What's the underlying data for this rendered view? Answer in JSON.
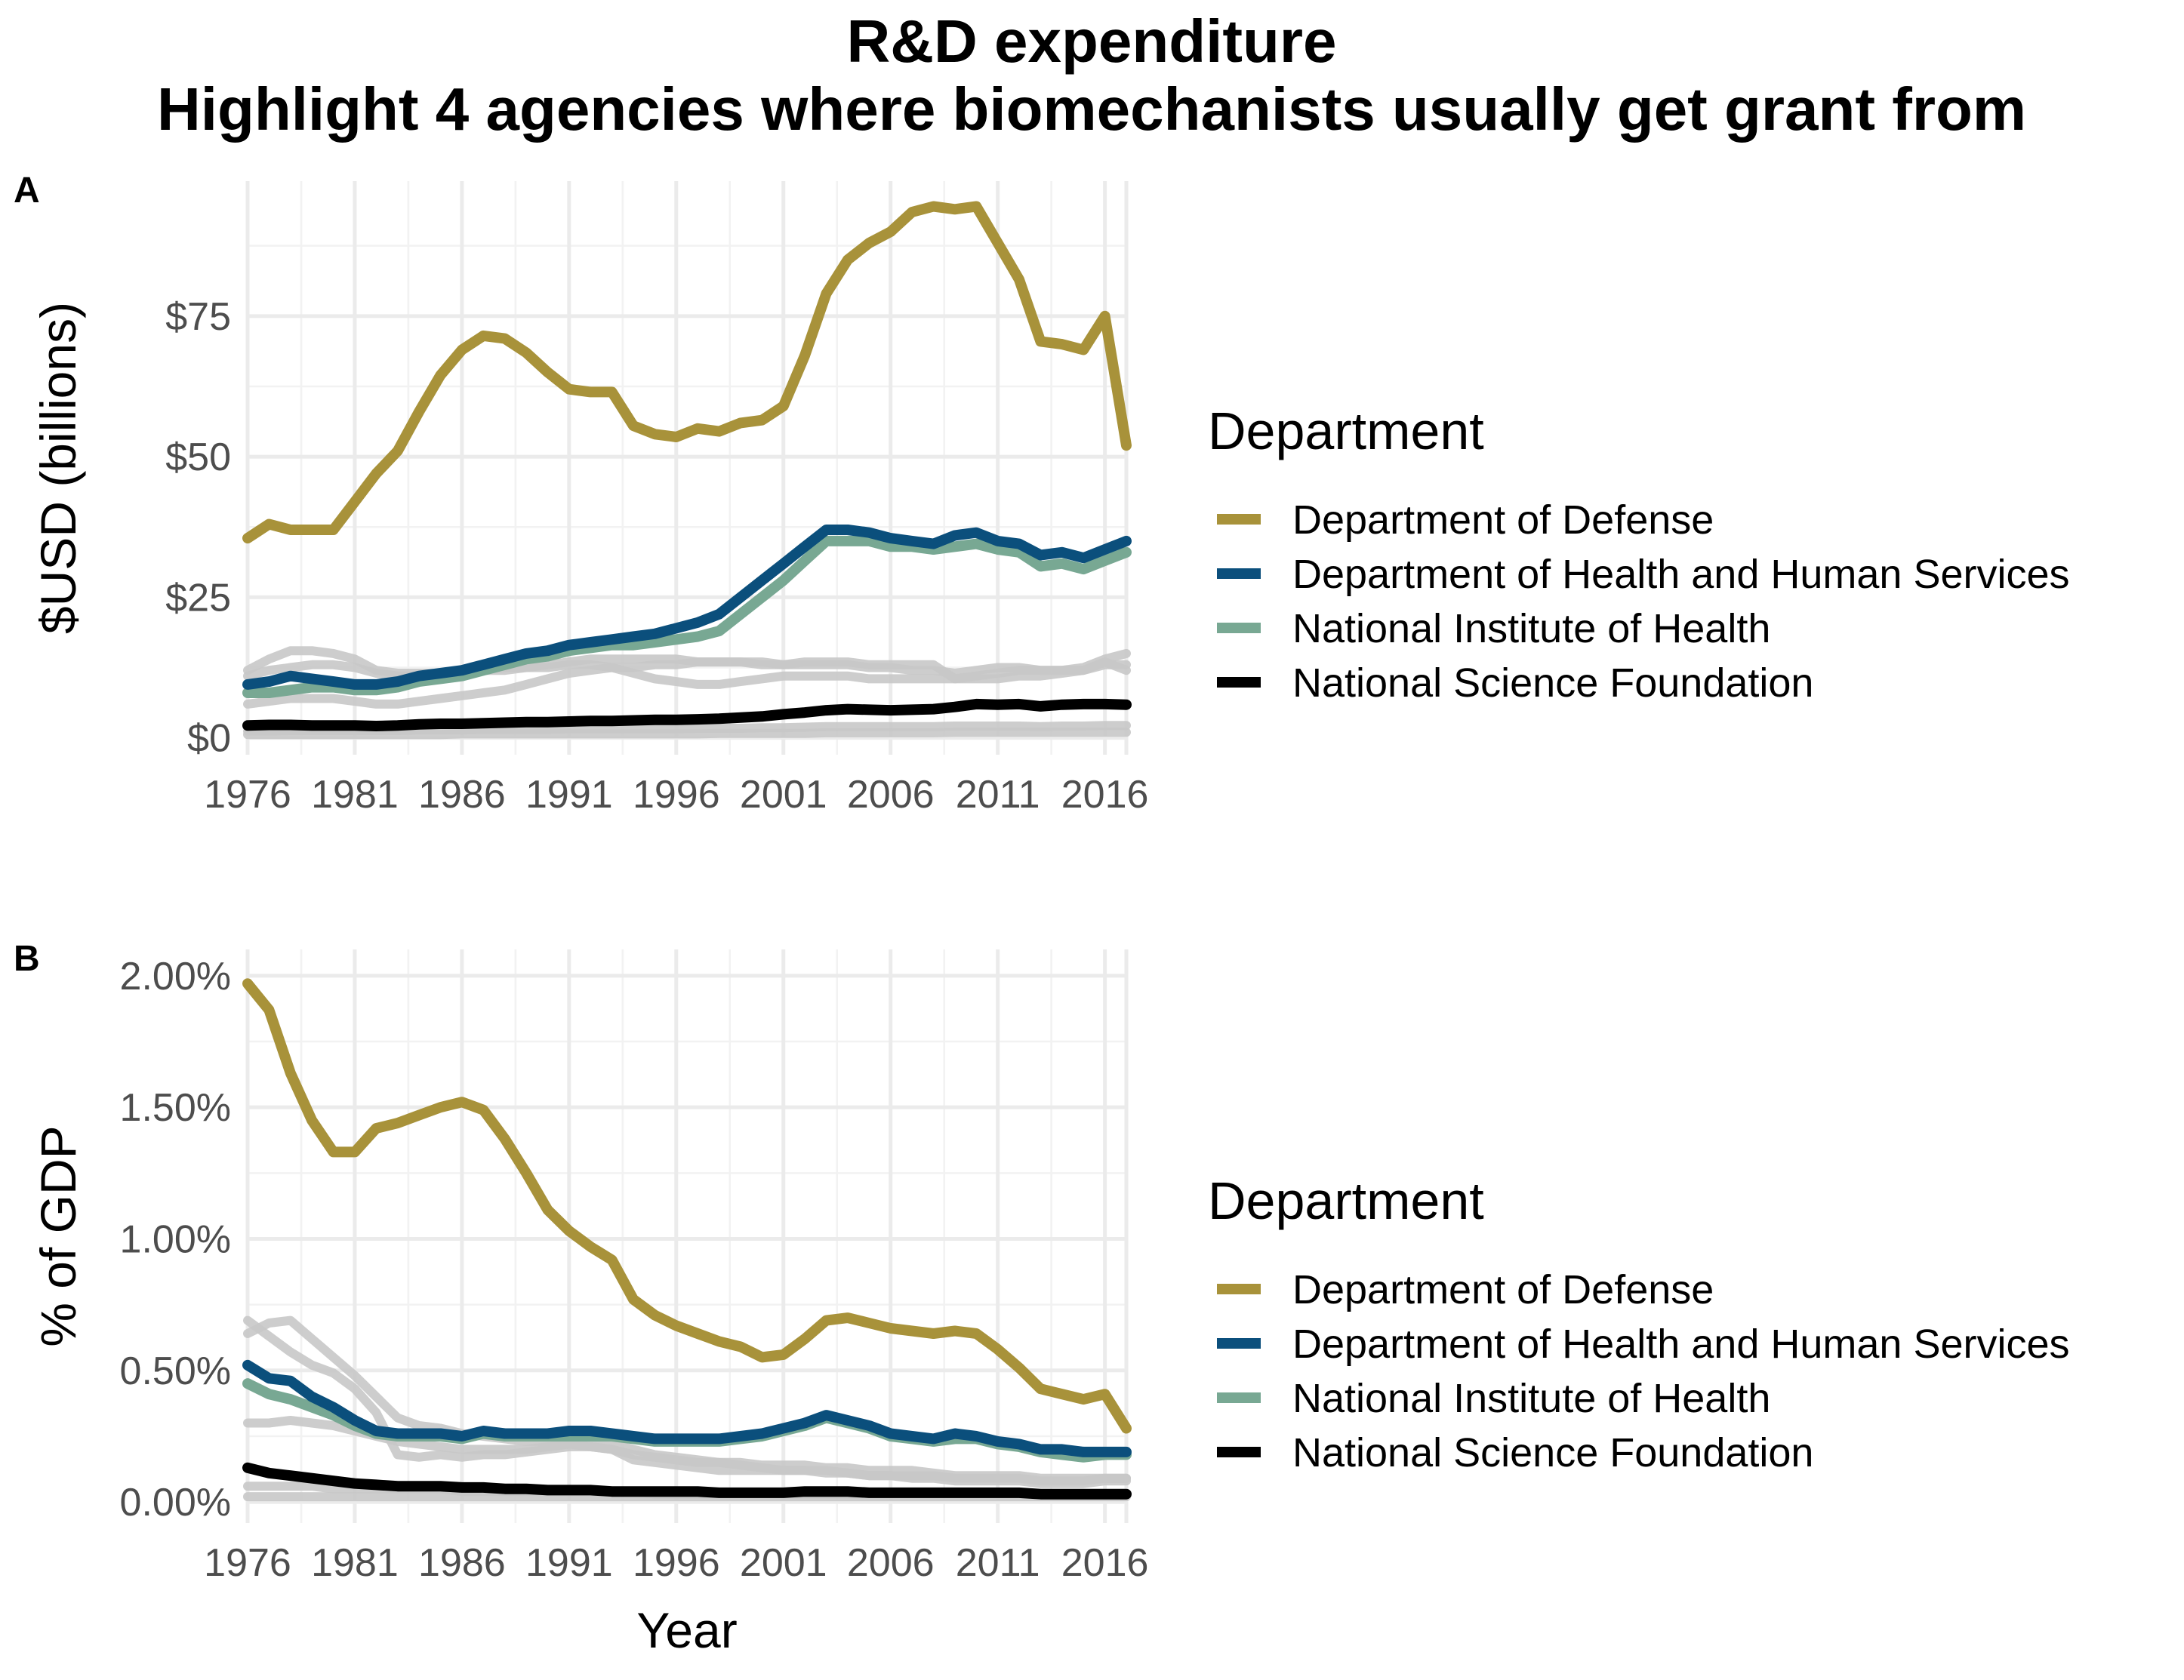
{
  "title_line1": "R&D expenditure",
  "title_line2": "Highlight 4 agencies where biomechanists usually get grant from",
  "colors": {
    "Department of Defense": "#a8923a",
    "Department of Health and Human Services": "#0b4f7c",
    "National Institute of Health": "#78a893",
    "National Science Foundation": "#000000",
    "background_agencies": "#c8c8c8"
  },
  "chart_data": [
    {
      "type": "line",
      "panel_tag": "A",
      "title": "",
      "xlabel": "",
      "ylabel": "$USD (billions)",
      "x_ticks": [
        "1976",
        "1981",
        "1986",
        "1991",
        "1996",
        "2001",
        "2006",
        "2011",
        "2016"
      ],
      "y_ticks": [
        "$0",
        "$25",
        "$50",
        "$75"
      ],
      "y_tick_values": [
        0,
        25,
        50,
        75
      ],
      "xlim": [
        1976,
        2017
      ],
      "ylim": [
        -3,
        99
      ],
      "grid": true,
      "legend": {
        "title": "Department",
        "position": "right",
        "entries": [
          "Department of Defense",
          "Department of Health and Human Services",
          "National Institute of Health",
          "National Science Foundation"
        ]
      },
      "x": [
        1976,
        1977,
        1978,
        1979,
        1980,
        1981,
        1982,
        1983,
        1984,
        1985,
        1986,
        1987,
        1988,
        1989,
        1990,
        1991,
        1992,
        1993,
        1994,
        1995,
        1996,
        1997,
        1998,
        1999,
        2000,
        2001,
        2002,
        2003,
        2004,
        2005,
        2006,
        2007,
        2008,
        2009,
        2010,
        2011,
        2012,
        2013,
        2014,
        2015,
        2016,
        2017
      ],
      "series": [
        {
          "name": "Department of Defense",
          "values": [
            35.5,
            38,
            37,
            37,
            37,
            42,
            47,
            51,
            58,
            64.5,
            69,
            71.5,
            71,
            68.5,
            65,
            62,
            61.5,
            61.5,
            55.5,
            54,
            53.5,
            55,
            54.5,
            56,
            56.5,
            59,
            68,
            79,
            85,
            88,
            90,
            93.5,
            94.5,
            94,
            94.5,
            88,
            81.5,
            70.5,
            70,
            69,
            75,
            52
          ]
        },
        {
          "name": "Department of Health and Human Services",
          "values": [
            9.5,
            10,
            11,
            10.5,
            10,
            9.5,
            9.5,
            10,
            11,
            11.5,
            12,
            13,
            14,
            15,
            15.5,
            16.5,
            17,
            17.5,
            18,
            18.5,
            19.5,
            20.5,
            22,
            25,
            28,
            31,
            34,
            37,
            37,
            36.5,
            35.5,
            35,
            34.5,
            36,
            36.5,
            35,
            34.5,
            32.5,
            33,
            32,
            33.5,
            35
          ]
        },
        {
          "name": "National Institute of Health",
          "values": [
            8,
            8,
            8.5,
            9,
            9,
            8.5,
            8.5,
            9,
            10,
            10.5,
            11,
            12,
            13,
            14,
            14.5,
            15.5,
            16,
            16.5,
            16.5,
            17,
            17.5,
            18,
            19,
            22,
            25,
            28,
            31.5,
            35,
            35,
            35,
            34,
            34,
            33.5,
            34,
            34.5,
            33.5,
            33,
            30.5,
            31,
            30,
            31.5,
            33
          ]
        },
        {
          "name": "National Science Foundation",
          "values": [
            2.2,
            2.3,
            2.3,
            2.2,
            2.2,
            2.2,
            2.1,
            2.2,
            2.4,
            2.5,
            2.5,
            2.6,
            2.7,
            2.8,
            2.8,
            2.9,
            3,
            3,
            3.1,
            3.2,
            3.2,
            3.3,
            3.4,
            3.6,
            3.8,
            4.2,
            4.5,
            4.9,
            5.1,
            5,
            4.9,
            5,
            5.1,
            5.5,
            6,
            5.9,
            6,
            5.6,
            5.9,
            6,
            6,
            5.9
          ]
        },
        {
          "name": "",
          "values": [
            12,
            14,
            15.5,
            15.5,
            15,
            14,
            12,
            11.5,
            11.5,
            11.5,
            11.5,
            12,
            12,
            12.5,
            13,
            13.5,
            14,
            14,
            14,
            14,
            14,
            13.5,
            13.5,
            13.5,
            13.5,
            13,
            13,
            13,
            13,
            12.5,
            12.5,
            12,
            12,
            11.5,
            12,
            12.5,
            12.5,
            12,
            12,
            12.5,
            14,
            15
          ]
        },
        {
          "name": "",
          "values": [
            11,
            12,
            12.5,
            13,
            13,
            12.5,
            11.5,
            11,
            11,
            11.5,
            12,
            12,
            12.5,
            12.5,
            12.5,
            13,
            13,
            12.5,
            11.5,
            10.5,
            10,
            9.5,
            9.5,
            10,
            10.5,
            11,
            11,
            11,
            11,
            10.5,
            10.5,
            10.5,
            10.5,
            10.5,
            10.5,
            10.5,
            11,
            11,
            11.5,
            12,
            13,
            13
          ]
        },
        {
          "name": "",
          "values": [
            6,
            6.5,
            7,
            7,
            7,
            6.5,
            6,
            6,
            6.5,
            7,
            7.5,
            8,
            8.5,
            9.5,
            10.5,
            11.5,
            12,
            12.5,
            12.5,
            13,
            13,
            13.5,
            13.5,
            13.5,
            13,
            13,
            13.5,
            13.5,
            13.5,
            13,
            13,
            13,
            13,
            10.5,
            11,
            11.5,
            12,
            12,
            12,
            12,
            13.5,
            12
          ]
        },
        {
          "name": "",
          "values": [
            1.2,
            1.2,
            1.3,
            1.3,
            1.3,
            1.3,
            1.3,
            1.3,
            1.4,
            1.4,
            1.4,
            1.5,
            1.5,
            1.5,
            1.5,
            1.6,
            1.6,
            1.6,
            1.6,
            1.6,
            1.6,
            1.7,
            1.7,
            1.7,
            1.8,
            1.8,
            1.9,
            2,
            2,
            2,
            2,
            2,
            2,
            2.1,
            2.1,
            2.1,
            2.1,
            2,
            2.1,
            2.1,
            2.2,
            2.2
          ]
        },
        {
          "name": "",
          "values": [
            0.6,
            0.6,
            0.6,
            0.6,
            0.6,
            0.6,
            0.6,
            0.6,
            0.6,
            0.6,
            0.7,
            0.7,
            0.7,
            0.7,
            0.7,
            0.7,
            0.7,
            0.7,
            0.7,
            0.7,
            0.7,
            0.7,
            0.8,
            0.8,
            0.8,
            0.8,
            0.8,
            0.9,
            0.9,
            0.9,
            0.9,
            0.9,
            0.9,
            1,
            1,
            1,
            1,
            1,
            1,
            1,
            1,
            1
          ]
        }
      ]
    },
    {
      "type": "line",
      "panel_tag": "B",
      "title": "",
      "xlabel": "Year",
      "ylabel": "% of GDP",
      "x_ticks": [
        "1976",
        "1981",
        "1986",
        "1991",
        "1996",
        "2001",
        "2006",
        "2011",
        "2016"
      ],
      "y_ticks": [
        "0.00%",
        "0.50%",
        "1.00%",
        "1.50%",
        "2.00%"
      ],
      "y_tick_values": [
        0,
        0.5,
        1,
        1.5,
        2
      ],
      "xlim": [
        1976,
        2017
      ],
      "ylim": [
        -0.08,
        2.1
      ],
      "grid": true,
      "legend": {
        "title": "Department",
        "position": "right",
        "entries": [
          "Department of Defense",
          "Department of Health and Human Services",
          "National Institute of Health",
          "National Science Foundation"
        ]
      },
      "x": [
        1976,
        1977,
        1978,
        1979,
        1980,
        1981,
        1982,
        1983,
        1984,
        1985,
        1986,
        1987,
        1988,
        1989,
        1990,
        1991,
        1992,
        1993,
        1994,
        1995,
        1996,
        1997,
        1998,
        1999,
        2000,
        2001,
        2002,
        2003,
        2004,
        2005,
        2006,
        2007,
        2008,
        2009,
        2010,
        2011,
        2012,
        2013,
        2014,
        2015,
        2016,
        2017
      ],
      "series": [
        {
          "name": "Department of Defense",
          "values": [
            1.97,
            1.87,
            1.63,
            1.45,
            1.33,
            1.33,
            1.42,
            1.44,
            1.47,
            1.5,
            1.52,
            1.49,
            1.38,
            1.25,
            1.11,
            1.03,
            0.97,
            0.92,
            0.77,
            0.71,
            0.67,
            0.64,
            0.61,
            0.59,
            0.55,
            0.56,
            0.62,
            0.69,
            0.7,
            0.68,
            0.66,
            0.65,
            0.64,
            0.65,
            0.64,
            0.58,
            0.51,
            0.43,
            0.41,
            0.39,
            0.41,
            0.28
          ]
        },
        {
          "name": "Department of Health and Human Services",
          "values": [
            0.52,
            0.47,
            0.46,
            0.4,
            0.36,
            0.31,
            0.27,
            0.26,
            0.26,
            0.26,
            0.25,
            0.27,
            0.26,
            0.26,
            0.26,
            0.27,
            0.27,
            0.26,
            0.25,
            0.24,
            0.24,
            0.24,
            0.24,
            0.25,
            0.26,
            0.28,
            0.3,
            0.33,
            0.31,
            0.29,
            0.26,
            0.25,
            0.24,
            0.26,
            0.25,
            0.23,
            0.22,
            0.2,
            0.2,
            0.19,
            0.19,
            0.19
          ]
        },
        {
          "name": "National Institute of Health",
          "values": [
            0.45,
            0.41,
            0.39,
            0.36,
            0.33,
            0.29,
            0.26,
            0.25,
            0.25,
            0.25,
            0.24,
            0.26,
            0.25,
            0.25,
            0.25,
            0.25,
            0.25,
            0.25,
            0.24,
            0.23,
            0.23,
            0.23,
            0.23,
            0.24,
            0.25,
            0.27,
            0.29,
            0.32,
            0.3,
            0.28,
            0.25,
            0.24,
            0.23,
            0.24,
            0.24,
            0.22,
            0.21,
            0.19,
            0.18,
            0.17,
            0.18,
            0.18
          ]
        },
        {
          "name": "National Science Foundation",
          "values": [
            0.13,
            0.11,
            0.1,
            0.09,
            0.08,
            0.07,
            0.065,
            0.06,
            0.06,
            0.06,
            0.055,
            0.055,
            0.05,
            0.05,
            0.045,
            0.045,
            0.045,
            0.04,
            0.04,
            0.04,
            0.04,
            0.04,
            0.035,
            0.035,
            0.035,
            0.035,
            0.04,
            0.04,
            0.04,
            0.035,
            0.035,
            0.035,
            0.035,
            0.035,
            0.035,
            0.035,
            0.035,
            0.03,
            0.03,
            0.03,
            0.03,
            0.03
          ]
        },
        {
          "name": "",
          "values": [
            0.64,
            0.68,
            0.69,
            0.62,
            0.55,
            0.48,
            0.4,
            0.32,
            0.29,
            0.28,
            0.26,
            0.25,
            0.24,
            0.23,
            0.23,
            0.23,
            0.22,
            0.22,
            0.2,
            0.18,
            0.17,
            0.16,
            0.15,
            0.14,
            0.13,
            0.12,
            0.12,
            0.12,
            0.11,
            0.1,
            0.1,
            0.1,
            0.1,
            0.09,
            0.09,
            0.09,
            0.09,
            0.08,
            0.08,
            0.08,
            0.09,
            0.09
          ]
        },
        {
          "name": "",
          "values": [
            0.69,
            0.63,
            0.57,
            0.52,
            0.49,
            0.43,
            0.34,
            0.18,
            0.17,
            0.18,
            0.17,
            0.18,
            0.18,
            0.19,
            0.2,
            0.21,
            0.21,
            0.2,
            0.16,
            0.15,
            0.14,
            0.13,
            0.12,
            0.12,
            0.12,
            0.12,
            0.12,
            0.11,
            0.11,
            0.1,
            0.1,
            0.09,
            0.09,
            0.08,
            0.08,
            0.08,
            0.08,
            0.07,
            0.07,
            0.07,
            0.08,
            0.08
          ]
        },
        {
          "name": "",
          "values": [
            0.3,
            0.3,
            0.31,
            0.3,
            0.29,
            0.27,
            0.25,
            0.23,
            0.22,
            0.21,
            0.2,
            0.2,
            0.2,
            0.2,
            0.21,
            0.22,
            0.21,
            0.2,
            0.18,
            0.17,
            0.16,
            0.15,
            0.15,
            0.15,
            0.14,
            0.14,
            0.14,
            0.13,
            0.13,
            0.12,
            0.12,
            0.12,
            0.11,
            0.1,
            0.1,
            0.1,
            0.1,
            0.09,
            0.09,
            0.09,
            0.09,
            0.09
          ]
        },
        {
          "name": "",
          "values": [
            0.06,
            0.06,
            0.06,
            0.06,
            0.05,
            0.05,
            0.05,
            0.05,
            0.05,
            0.05,
            0.04,
            0.04,
            0.04,
            0.04,
            0.04,
            0.04,
            0.04,
            0.04,
            0.04,
            0.03,
            0.03,
            0.03,
            0.03,
            0.03,
            0.03,
            0.03,
            0.03,
            0.03,
            0.03,
            0.03,
            0.03,
            0.03,
            0.03,
            0.03,
            0.03,
            0.03,
            0.03,
            0.03,
            0.03,
            0.03,
            0.03,
            0.03
          ]
        },
        {
          "name": "",
          "values": [
            0.02,
            0.02,
            0.02,
            0.02,
            0.02,
            0.02,
            0.02,
            0.02,
            0.02,
            0.02,
            0.02,
            0.02,
            0.02,
            0.02,
            0.02,
            0.02,
            0.02,
            0.02,
            0.02,
            0.02,
            0.02,
            0.02,
            0.02,
            0.02,
            0.02,
            0.02,
            0.02,
            0.02,
            0.02,
            0.02,
            0.02,
            0.02,
            0.02,
            0.02,
            0.02,
            0.02,
            0.02,
            0.02,
            0.02,
            0.02,
            0.02,
            0.02
          ]
        }
      ]
    }
  ]
}
